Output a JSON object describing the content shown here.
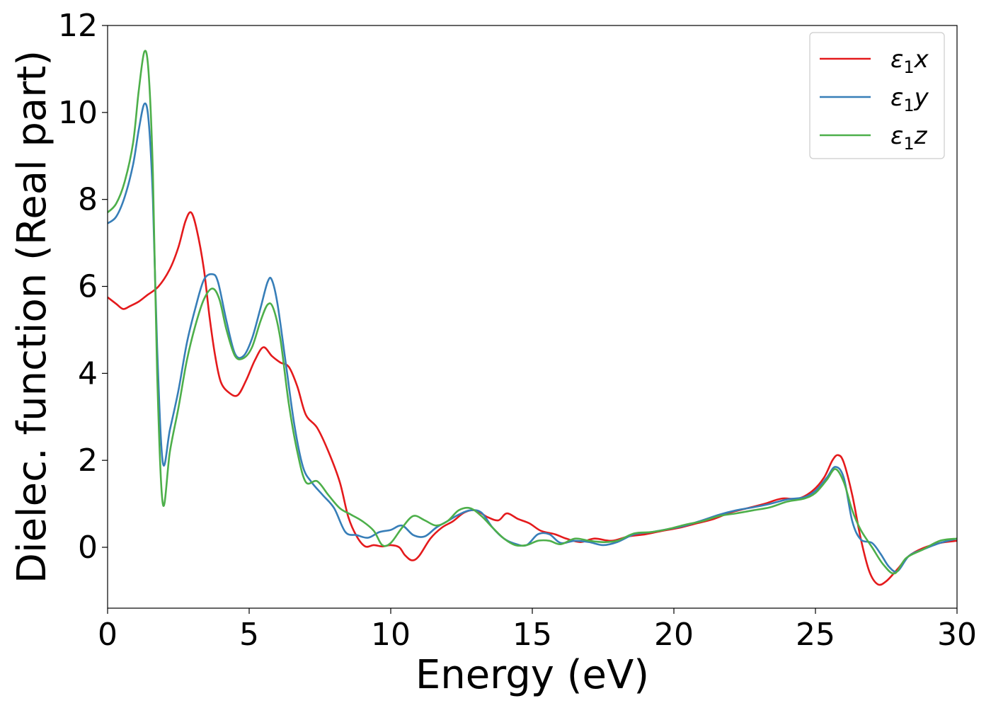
{
  "chart_data": {
    "type": "line",
    "xlabel": "Energy (eV)",
    "ylabel": "Dielec. function (Real part)",
    "xlim": [
      0,
      30
    ],
    "ylim": [
      -1.4,
      12.0
    ],
    "xticks": [
      0,
      5,
      10,
      15,
      20,
      25,
      30
    ],
    "yticks": [
      0,
      2,
      4,
      6,
      8,
      10,
      12
    ],
    "grid": false,
    "legend_position": "top-right",
    "series": [
      {
        "name": "ε₁x",
        "legend_base": "ε",
        "legend_sub": "1",
        "legend_tail": "x",
        "color": "#e41a1c",
        "points": [
          [
            0.0,
            5.75
          ],
          [
            0.3,
            5.6
          ],
          [
            0.55,
            5.48
          ],
          [
            0.8,
            5.55
          ],
          [
            1.1,
            5.65
          ],
          [
            1.4,
            5.8
          ],
          [
            1.8,
            6.0
          ],
          [
            2.2,
            6.4
          ],
          [
            2.5,
            6.9
          ],
          [
            2.75,
            7.5
          ],
          [
            2.95,
            7.7
          ],
          [
            3.15,
            7.3
          ],
          [
            3.4,
            6.4
          ],
          [
            3.6,
            5.3
          ],
          [
            3.8,
            4.4
          ],
          [
            4.0,
            3.8
          ],
          [
            4.3,
            3.55
          ],
          [
            4.6,
            3.5
          ],
          [
            4.9,
            3.85
          ],
          [
            5.2,
            4.3
          ],
          [
            5.5,
            4.6
          ],
          [
            5.8,
            4.4
          ],
          [
            6.1,
            4.25
          ],
          [
            6.4,
            4.15
          ],
          [
            6.7,
            3.7
          ],
          [
            7.0,
            3.05
          ],
          [
            7.4,
            2.75
          ],
          [
            7.8,
            2.2
          ],
          [
            8.2,
            1.5
          ],
          [
            8.5,
            0.7
          ],
          [
            8.8,
            0.25
          ],
          [
            9.1,
            0.02
          ],
          [
            9.4,
            0.05
          ],
          [
            9.7,
            0.02
          ],
          [
            10.0,
            0.05
          ],
          [
            10.3,
            0.0
          ],
          [
            10.5,
            -0.18
          ],
          [
            10.75,
            -0.3
          ],
          [
            11.0,
            -0.2
          ],
          [
            11.4,
            0.2
          ],
          [
            11.8,
            0.45
          ],
          [
            12.2,
            0.6
          ],
          [
            12.6,
            0.8
          ],
          [
            13.0,
            0.85
          ],
          [
            13.4,
            0.7
          ],
          [
            13.8,
            0.62
          ],
          [
            14.1,
            0.78
          ],
          [
            14.5,
            0.65
          ],
          [
            14.9,
            0.55
          ],
          [
            15.3,
            0.38
          ],
          [
            15.8,
            0.3
          ],
          [
            16.2,
            0.2
          ],
          [
            16.7,
            0.12
          ],
          [
            17.2,
            0.2
          ],
          [
            17.8,
            0.15
          ],
          [
            18.4,
            0.25
          ],
          [
            19.0,
            0.3
          ],
          [
            19.6,
            0.38
          ],
          [
            20.2,
            0.45
          ],
          [
            20.8,
            0.55
          ],
          [
            21.4,
            0.65
          ],
          [
            22.0,
            0.8
          ],
          [
            22.6,
            0.9
          ],
          [
            23.2,
            1.0
          ],
          [
            23.8,
            1.12
          ],
          [
            24.4,
            1.12
          ],
          [
            24.9,
            1.3
          ],
          [
            25.3,
            1.6
          ],
          [
            25.6,
            2.0
          ],
          [
            25.8,
            2.12
          ],
          [
            26.0,
            1.95
          ],
          [
            26.3,
            1.2
          ],
          [
            26.6,
            0.2
          ],
          [
            26.9,
            -0.55
          ],
          [
            27.2,
            -0.85
          ],
          [
            27.5,
            -0.78
          ],
          [
            27.9,
            -0.5
          ],
          [
            28.3,
            -0.2
          ],
          [
            28.8,
            -0.02
          ],
          [
            29.4,
            0.1
          ],
          [
            30.0,
            0.15
          ]
        ]
      },
      {
        "name": "ε₁y",
        "legend_base": "ε",
        "legend_sub": "1",
        "legend_tail": "y",
        "color": "#377eb8",
        "points": [
          [
            0.0,
            7.45
          ],
          [
            0.3,
            7.6
          ],
          [
            0.6,
            8.05
          ],
          [
            0.9,
            8.8
          ],
          [
            1.1,
            9.6
          ],
          [
            1.3,
            10.2
          ],
          [
            1.45,
            9.8
          ],
          [
            1.6,
            8.0
          ],
          [
            1.75,
            4.6
          ],
          [
            1.95,
            1.95
          ],
          [
            2.2,
            2.7
          ],
          [
            2.5,
            3.6
          ],
          [
            2.8,
            4.7
          ],
          [
            3.1,
            5.5
          ],
          [
            3.4,
            6.15
          ],
          [
            3.7,
            6.28
          ],
          [
            3.9,
            6.1
          ],
          [
            4.2,
            5.2
          ],
          [
            4.5,
            4.45
          ],
          [
            4.8,
            4.4
          ],
          [
            5.1,
            4.8
          ],
          [
            5.4,
            5.5
          ],
          [
            5.65,
            6.1
          ],
          [
            5.8,
            6.15
          ],
          [
            6.0,
            5.6
          ],
          [
            6.3,
            4.2
          ],
          [
            6.6,
            2.8
          ],
          [
            6.9,
            1.85
          ],
          [
            7.2,
            1.5
          ],
          [
            7.6,
            1.2
          ],
          [
            8.0,
            0.9
          ],
          [
            8.4,
            0.35
          ],
          [
            8.8,
            0.28
          ],
          [
            9.2,
            0.22
          ],
          [
            9.6,
            0.35
          ],
          [
            10.0,
            0.4
          ],
          [
            10.4,
            0.5
          ],
          [
            10.8,
            0.28
          ],
          [
            11.2,
            0.25
          ],
          [
            11.6,
            0.45
          ],
          [
            12.0,
            0.6
          ],
          [
            12.4,
            0.75
          ],
          [
            12.8,
            0.85
          ],
          [
            13.2,
            0.8
          ],
          [
            13.6,
            0.45
          ],
          [
            14.0,
            0.2
          ],
          [
            14.4,
            0.08
          ],
          [
            14.8,
            0.05
          ],
          [
            15.2,
            0.3
          ],
          [
            15.6,
            0.3
          ],
          [
            16.0,
            0.1
          ],
          [
            16.5,
            0.15
          ],
          [
            17.0,
            0.12
          ],
          [
            17.5,
            0.05
          ],
          [
            18.0,
            0.12
          ],
          [
            18.6,
            0.3
          ],
          [
            19.2,
            0.35
          ],
          [
            19.8,
            0.42
          ],
          [
            20.4,
            0.5
          ],
          [
            21.0,
            0.62
          ],
          [
            21.6,
            0.75
          ],
          [
            22.2,
            0.85
          ],
          [
            22.8,
            0.92
          ],
          [
            23.4,
            1.0
          ],
          [
            24.0,
            1.1
          ],
          [
            24.6,
            1.15
          ],
          [
            25.0,
            1.3
          ],
          [
            25.4,
            1.6
          ],
          [
            25.7,
            1.85
          ],
          [
            26.0,
            1.6
          ],
          [
            26.3,
            0.6
          ],
          [
            26.6,
            0.18
          ],
          [
            27.0,
            0.1
          ],
          [
            27.3,
            -0.15
          ],
          [
            27.6,
            -0.45
          ],
          [
            27.9,
            -0.55
          ],
          [
            28.3,
            -0.2
          ],
          [
            28.8,
            -0.05
          ],
          [
            29.4,
            0.1
          ],
          [
            30.0,
            0.2
          ]
        ]
      },
      {
        "name": "ε₁z",
        "legend_base": "ε",
        "legend_sub": "1",
        "legend_tail": "z",
        "color": "#4daf4a",
        "points": [
          [
            0.0,
            7.7
          ],
          [
            0.3,
            7.9
          ],
          [
            0.6,
            8.4
          ],
          [
            0.9,
            9.3
          ],
          [
            1.1,
            10.5
          ],
          [
            1.3,
            11.4
          ],
          [
            1.45,
            10.9
          ],
          [
            1.6,
            8.6
          ],
          [
            1.75,
            4.0
          ],
          [
            1.95,
            1.0
          ],
          [
            2.2,
            2.2
          ],
          [
            2.5,
            3.2
          ],
          [
            2.8,
            4.3
          ],
          [
            3.1,
            5.1
          ],
          [
            3.4,
            5.7
          ],
          [
            3.7,
            5.95
          ],
          [
            3.95,
            5.7
          ],
          [
            4.2,
            5.0
          ],
          [
            4.5,
            4.4
          ],
          [
            4.8,
            4.35
          ],
          [
            5.1,
            4.6
          ],
          [
            5.4,
            5.2
          ],
          [
            5.65,
            5.58
          ],
          [
            5.85,
            5.5
          ],
          [
            6.1,
            4.8
          ],
          [
            6.4,
            3.3
          ],
          [
            6.7,
            2.2
          ],
          [
            7.0,
            1.5
          ],
          [
            7.4,
            1.52
          ],
          [
            7.8,
            1.2
          ],
          [
            8.2,
            0.9
          ],
          [
            8.6,
            0.75
          ],
          [
            9.0,
            0.6
          ],
          [
            9.4,
            0.38
          ],
          [
            9.7,
            0.05
          ],
          [
            10.0,
            0.1
          ],
          [
            10.4,
            0.45
          ],
          [
            10.8,
            0.72
          ],
          [
            11.2,
            0.62
          ],
          [
            11.6,
            0.5
          ],
          [
            12.0,
            0.6
          ],
          [
            12.4,
            0.85
          ],
          [
            12.8,
            0.9
          ],
          [
            13.2,
            0.72
          ],
          [
            13.6,
            0.45
          ],
          [
            14.0,
            0.2
          ],
          [
            14.4,
            0.05
          ],
          [
            14.8,
            0.05
          ],
          [
            15.2,
            0.15
          ],
          [
            15.6,
            0.15
          ],
          [
            16.0,
            0.07
          ],
          [
            16.5,
            0.2
          ],
          [
            17.0,
            0.15
          ],
          [
            17.5,
            0.12
          ],
          [
            18.0,
            0.15
          ],
          [
            18.6,
            0.32
          ],
          [
            19.2,
            0.35
          ],
          [
            19.8,
            0.42
          ],
          [
            20.4,
            0.52
          ],
          [
            21.0,
            0.6
          ],
          [
            21.6,
            0.72
          ],
          [
            22.2,
            0.78
          ],
          [
            22.8,
            0.85
          ],
          [
            23.4,
            0.92
          ],
          [
            24.0,
            1.05
          ],
          [
            24.6,
            1.12
          ],
          [
            25.0,
            1.25
          ],
          [
            25.4,
            1.55
          ],
          [
            25.7,
            1.8
          ],
          [
            26.0,
            1.5
          ],
          [
            26.3,
            0.85
          ],
          [
            26.6,
            0.4
          ],
          [
            27.0,
            0.0
          ],
          [
            27.4,
            -0.4
          ],
          [
            27.8,
            -0.6
          ],
          [
            28.2,
            -0.25
          ],
          [
            28.8,
            -0.05
          ],
          [
            29.4,
            0.15
          ],
          [
            30.0,
            0.2
          ]
        ]
      }
    ]
  }
}
